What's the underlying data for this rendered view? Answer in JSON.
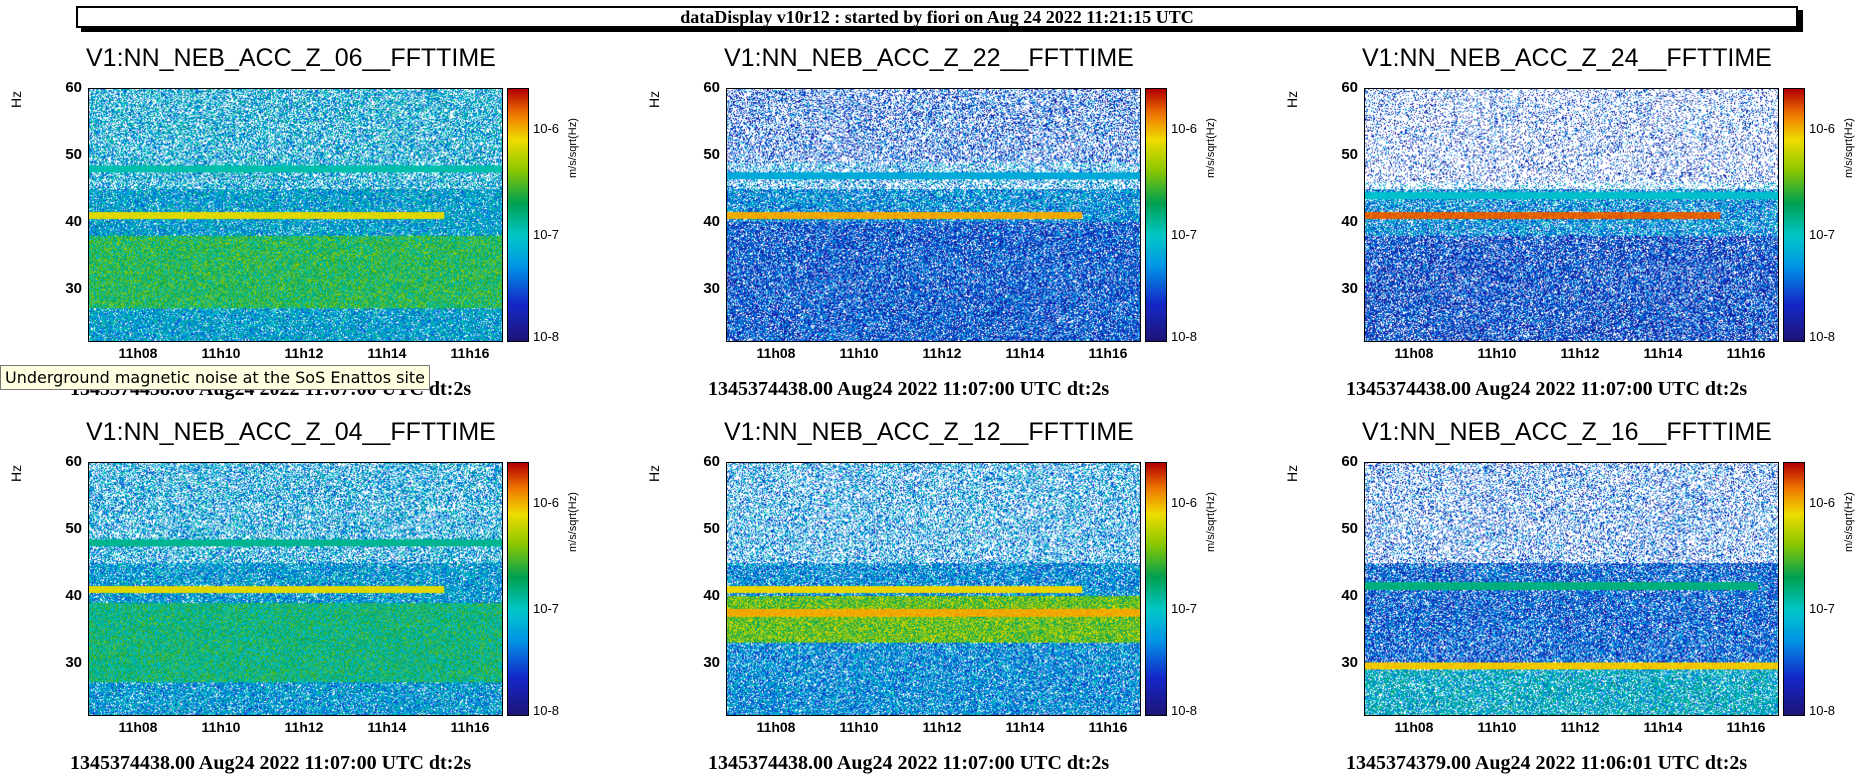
{
  "banner": "dataDisplay v10r12 : started by fiori on Aug 24 2022 11:21:15 UTC",
  "tooltip": "Underground magnetic noise at the SoS Enattos site",
  "colors": {
    "low": "#1a1a8c",
    "high": "#c80000",
    "empty": "#ffffff"
  },
  "chart_data": [
    {
      "type": "heatmap",
      "title": "V1:NN_NEB_ACC_Z_06__FFTTIME",
      "footer": "1345374438.00 Aug24 2022 11:07:00 UTC dt:2s",
      "ylabel": "Hz",
      "zlabel": "m/s/sqrt(Hz)",
      "ylim": [
        22,
        60
      ],
      "yticks": [
        "60",
        "50",
        "40",
        "30"
      ],
      "xticks": [
        "11h08",
        "11h10",
        "11h12",
        "11h14",
        "11h16"
      ],
      "ztick_labels": [
        "10-6",
        "10-7",
        "10-8"
      ],
      "noise_level": 0.35,
      "white_fraction_high": 0.35,
      "lines": [
        {
          "freq": 41,
          "level": 0.78,
          "end": 0.86
        },
        {
          "freq": 48,
          "level": 0.45,
          "end": 1.0
        }
      ],
      "band": {
        "from": 27,
        "to": 38,
        "level": 0.55
      }
    },
    {
      "type": "heatmap",
      "title": "V1:NN_NEB_ACC_Z_22__FFTTIME",
      "footer": "1345374438.00 Aug24 2022 11:07:00 UTC dt:2s",
      "ylabel": "Hz",
      "zlabel": "m/s/sqrt(Hz)",
      "ylim": [
        22,
        60
      ],
      "yticks": [
        "60",
        "50",
        "40",
        "30"
      ],
      "xticks": [
        "11h08",
        "11h10",
        "11h12",
        "11h14",
        "11h16"
      ],
      "ztick_labels": [
        "10-6",
        "10-7",
        "10-8"
      ],
      "noise_level": 0.2,
      "white_fraction_high": 0.55,
      "lines": [
        {
          "freq": 41,
          "level": 0.85,
          "end": 0.86
        },
        {
          "freq": 47,
          "level": 0.35,
          "end": 1.0
        }
      ],
      "band": {
        "from": 40,
        "to": 49,
        "level": 0.3
      }
    },
    {
      "type": "heatmap",
      "title": "V1:NN_NEB_ACC_Z_24__FFTTIME",
      "footer": "1345374438.00 Aug24 2022 11:07:00 UTC dt:2s",
      "ylabel": "Hz",
      "zlabel": "m/s/sqrt(Hz)",
      "ylim": [
        22,
        60
      ],
      "yticks": [
        "60",
        "50",
        "40",
        "30"
      ],
      "xticks": [
        "11h08",
        "11h10",
        "11h12",
        "11h14",
        "11h16"
      ],
      "ztick_labels": [
        "10-6",
        "10-7",
        "10-8"
      ],
      "noise_level": 0.18,
      "white_fraction_high": 0.75,
      "lines": [
        {
          "freq": 41,
          "level": 0.92,
          "end": 0.86
        },
        {
          "freq": 44,
          "level": 0.4,
          "end": 1.0
        }
      ],
      "band": {
        "from": 38,
        "to": 46,
        "level": 0.3
      }
    },
    {
      "type": "heatmap",
      "title": "V1:NN_NEB_ACC_Z_04__FFTTIME",
      "footer": "1345374438.00 Aug24 2022 11:07:00 UTC dt:2s",
      "ylabel": "Hz",
      "zlabel": "m/s/sqrt(Hz)",
      "ylim": [
        22,
        60
      ],
      "yticks": [
        "60",
        "50",
        "40",
        "30"
      ],
      "xticks": [
        "11h08",
        "11h10",
        "11h12",
        "11h14",
        "11h16"
      ],
      "ztick_labels": [
        "10-6",
        "10-7",
        "10-8"
      ],
      "noise_level": 0.33,
      "white_fraction_high": 0.4,
      "lines": [
        {
          "freq": 41,
          "level": 0.78,
          "end": 0.86
        },
        {
          "freq": 48,
          "level": 0.48,
          "end": 1.0
        }
      ],
      "band": {
        "from": 27,
        "to": 39,
        "level": 0.5
      }
    },
    {
      "type": "heatmap",
      "title": "V1:NN_NEB_ACC_Z_12__FFTTIME",
      "footer": "1345374438.00 Aug24 2022 11:07:00 UTC dt:2s",
      "ylabel": "Hz",
      "zlabel": "m/s/sqrt(Hz)",
      "ylim": [
        22,
        60
      ],
      "yticks": [
        "60",
        "50",
        "40",
        "30"
      ],
      "xticks": [
        "11h08",
        "11h10",
        "11h12",
        "11h14",
        "11h16"
      ],
      "ztick_labels": [
        "10-6",
        "10-7",
        "10-8"
      ],
      "noise_level": 0.3,
      "white_fraction_high": 0.5,
      "lines": [
        {
          "freq": 41,
          "level": 0.8,
          "end": 0.86
        },
        {
          "freq": 37.5,
          "level": 0.85,
          "end": 1.0
        }
      ],
      "band": {
        "from": 33,
        "to": 40,
        "level": 0.65
      }
    },
    {
      "type": "heatmap",
      "title": "V1:NN_NEB_ACC_Z_16__FFTTIME",
      "footer": "1345374379.00 Aug24 2022 11:06:01 UTC dt:2s",
      "ylabel": "Hz",
      "zlabel": "m/s/sqrt(Hz)",
      "ylim": [
        22,
        60
      ],
      "yticks": [
        "60",
        "50",
        "40",
        "30"
      ],
      "xticks": [
        "11h08",
        "11h10",
        "11h12",
        "11h14",
        "11h16"
      ],
      "ztick_labels": [
        "10-6",
        "10-7",
        "10-8"
      ],
      "noise_level": 0.22,
      "white_fraction_high": 0.65,
      "lines": [
        {
          "freq": 41.5,
          "level": 0.5,
          "end": 0.95
        },
        {
          "freq": 29.5,
          "level": 0.82,
          "end": 1.0
        }
      ],
      "band": {
        "from": 22,
        "to": 30,
        "level": 0.38
      }
    }
  ]
}
